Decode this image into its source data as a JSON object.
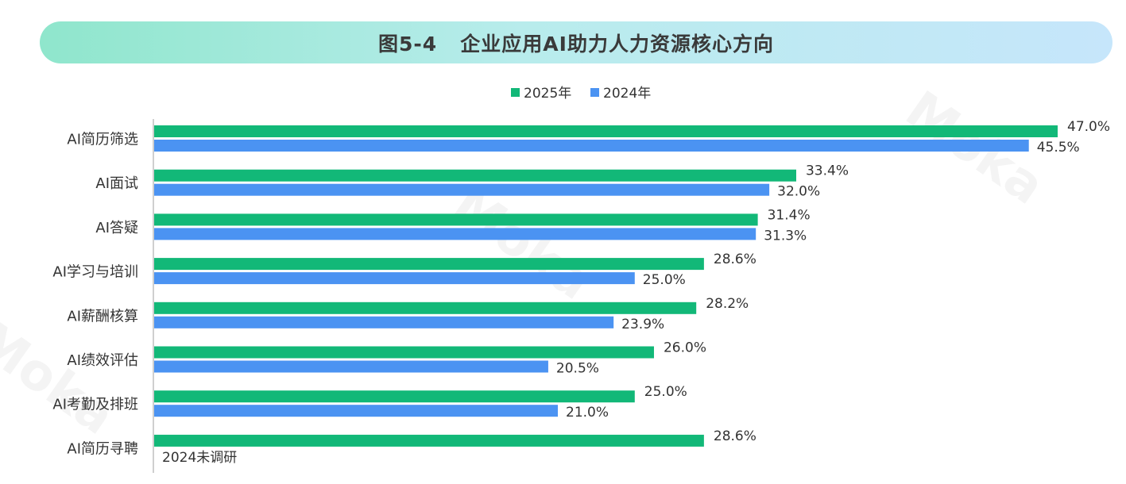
{
  "figure": {
    "title": "图5-4   企业应用AI助力人力资源核心方向"
  },
  "watermarks": [
    "Moka",
    "Moka",
    "Moka"
  ],
  "chart_data": {
    "type": "bar",
    "orientation": "horizontal",
    "title": "图5-4   企业应用AI助力人力资源核心方向",
    "xlabel": "",
    "ylabel": "",
    "xlim": [
      0,
      47
    ],
    "grid": false,
    "legend_position": "top-center",
    "categories": [
      "AI简历筛选",
      "AI面试",
      "AI答疑",
      "AI学习与培训",
      "AI薪酬核算",
      "AI绩效评估",
      "AI考勤及排班",
      "AI简历寻聘"
    ],
    "series": [
      {
        "name": "2025年",
        "color": "#12b878",
        "values": [
          47.0,
          33.4,
          31.4,
          28.6,
          28.2,
          26.0,
          25.0,
          28.6
        ],
        "labels": [
          "47.0%",
          "33.4%",
          "31.4%",
          "28.6%",
          "28.2%",
          "26.0%",
          "25.0%",
          "28.6%"
        ]
      },
      {
        "name": "2024年",
        "color": "#4b93f2",
        "values": [
          45.5,
          32.0,
          31.3,
          25.0,
          23.9,
          20.5,
          21.0,
          null
        ],
        "labels": [
          "45.5%",
          "32.0%",
          "31.3%",
          "25.0%",
          "23.9%",
          "20.5%",
          "21.0%",
          "2024未调研"
        ]
      }
    ]
  }
}
